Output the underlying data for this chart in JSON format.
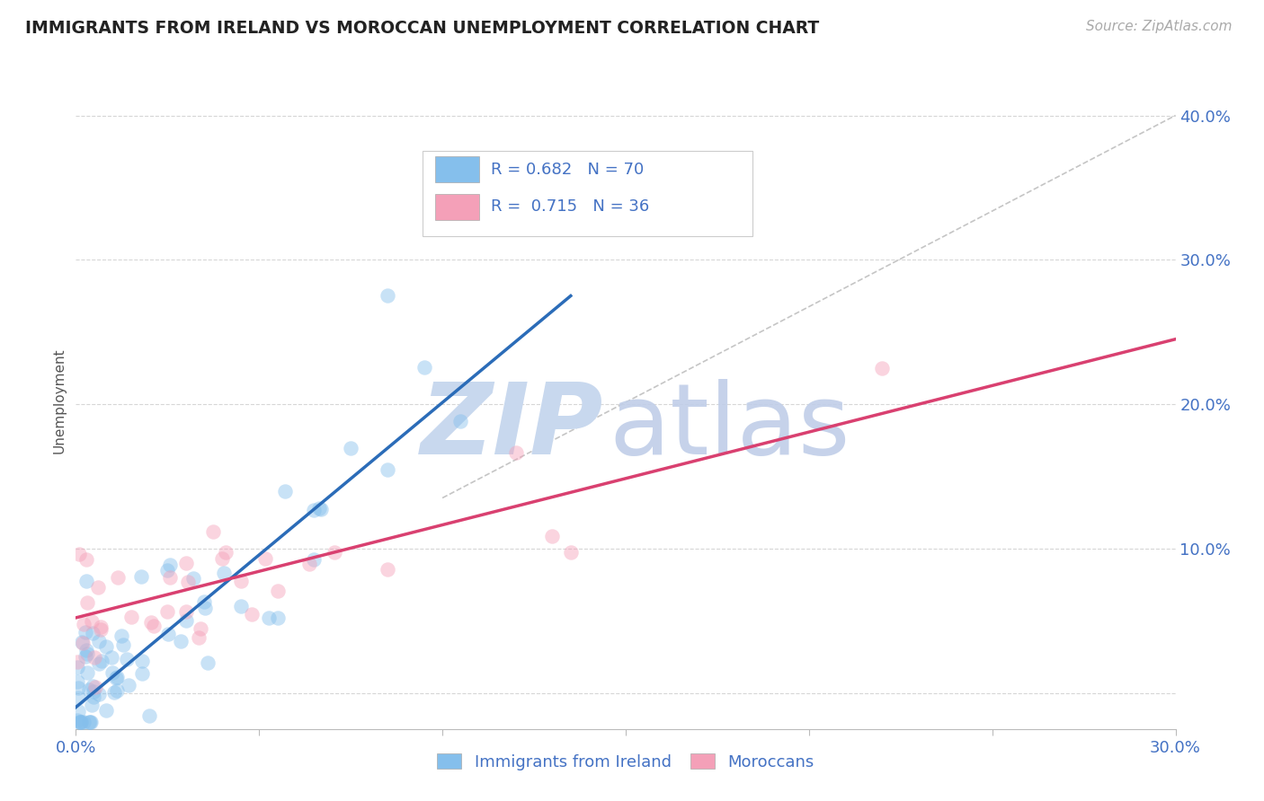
{
  "title": "IMMIGRANTS FROM IRELAND VS MOROCCAN UNEMPLOYMENT CORRELATION CHART",
  "source_text": "Source: ZipAtlas.com",
  "ylabel": "Unemployment",
  "xlim": [
    0.0,
    0.3
  ],
  "ylim": [
    -0.025,
    0.43
  ],
  "x_ticks": [
    0.0,
    0.05,
    0.1,
    0.15,
    0.2,
    0.25,
    0.3
  ],
  "x_tick_labels": [
    "0.0%",
    "",
    "",
    "",
    "",
    "",
    "30.0%"
  ],
  "y_ticks": [
    0.0,
    0.1,
    0.2,
    0.3,
    0.4
  ],
  "y_tick_labels": [
    "",
    "10.0%",
    "20.0%",
    "30.0%",
    "40.0%"
  ],
  "blue_color": "#85BFEC",
  "pink_color": "#F4A0B8",
  "blue_line_color": "#2B6CB8",
  "pink_line_color": "#D94070",
  "ref_line_color": "#BBBBBB",
  "grid_color": "#CCCCCC",
  "title_color": "#222222",
  "axis_label_color": "#4472C4",
  "legend_text_color": "#4472C4",
  "watermark_ZIP_color": "#C8D8EE",
  "watermark_atlas_color": "#C0CEE8",
  "blue_R": 0.682,
  "blue_N": 70,
  "pink_R": 0.715,
  "pink_N": 36,
  "blue_line_x0": 0.0,
  "blue_line_y0": -0.01,
  "blue_line_x1": 0.135,
  "blue_line_y1": 0.275,
  "pink_line_x0": 0.0,
  "pink_line_y0": 0.052,
  "pink_line_x1": 0.3,
  "pink_line_y1": 0.245,
  "ref_line_x0": 0.1,
  "ref_line_y0": 0.135,
  "ref_line_x1": 0.3,
  "ref_line_y1": 0.4,
  "background_color": "#FFFFFF",
  "blue_seed": 77,
  "pink_seed": 33
}
